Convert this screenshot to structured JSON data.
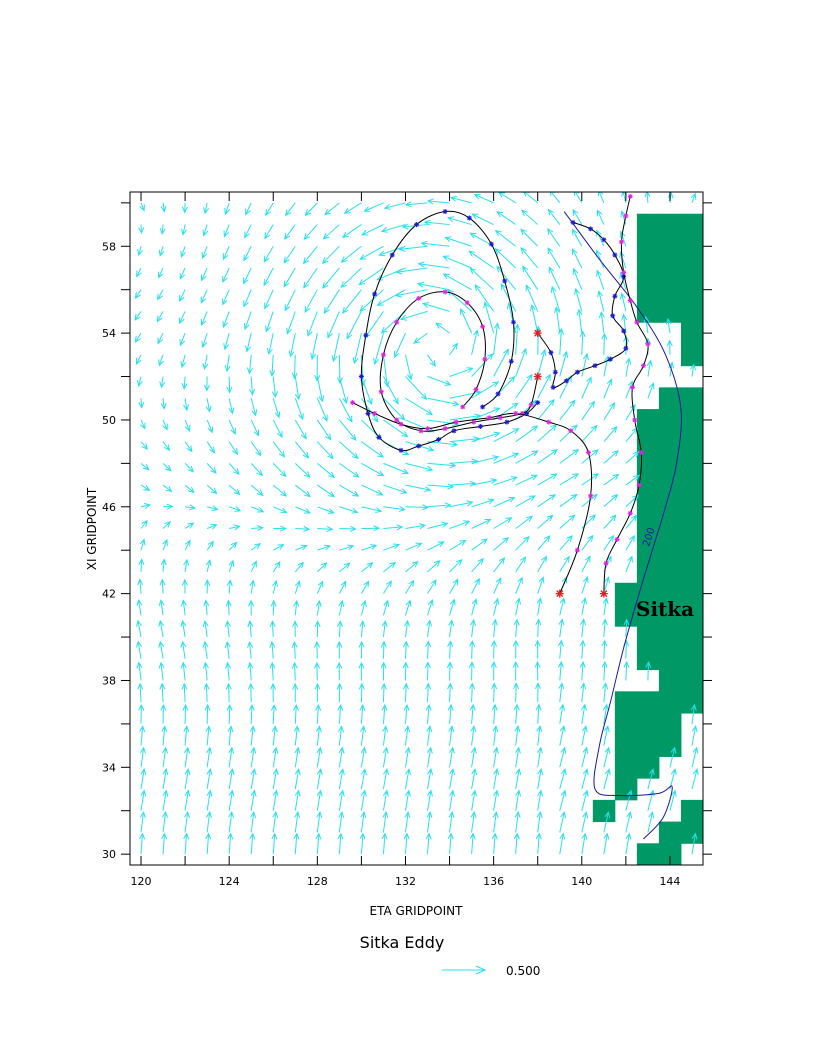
{
  "chart_data": {
    "type": "scatter",
    "subtype": "vector-field-with-trajectories",
    "title": "Sitka Eddy",
    "xlabel": "ETA GRIDPOINT",
    "ylabel": "XI GRIDPOINT",
    "xlim": [
      119.5,
      145.5
    ],
    "ylim": [
      29.5,
      60.5
    ],
    "x_ticks": [
      120,
      124,
      128,
      132,
      136,
      140,
      144
    ],
    "y_ticks": [
      30,
      34,
      38,
      42,
      46,
      50,
      54,
      58
    ],
    "x_tick_labels": [
      "120",
      "124",
      "128",
      "132",
      "136",
      "140",
      "144"
    ],
    "y_tick_labels": [
      "30",
      "34",
      "38",
      "42",
      "46",
      "50",
      "54",
      "58"
    ],
    "grid": false,
    "colors": {
      "vectors": "#26e0f0",
      "land": "#009966",
      "contour": "#1a1aa0",
      "track_blue": "#1a1ad0",
      "track_magenta": "#e020e0",
      "release_marker": "#e02020",
      "line": "#000000"
    },
    "eddy": {
      "center": [
        133.5,
        53.5
      ],
      "direction": "anticyclonic"
    },
    "reference_vector": {
      "label": "0.500",
      "magnitude": 0.5
    },
    "place_label": {
      "text": "Sitka",
      "x": 142.5,
      "y": 41.3
    },
    "contour": {
      "label": "200",
      "label_at": [
        142.2,
        45.2
      ],
      "points": [
        [
          139.2,
          59.6
        ],
        [
          140.8,
          57.4
        ],
        [
          142.5,
          55.2
        ],
        [
          143.8,
          53.0
        ],
        [
          144.5,
          50.5
        ],
        [
          144.3,
          48.0
        ],
        [
          143.8,
          46.0
        ],
        [
          143.2,
          44.0
        ],
        [
          142.6,
          42.0
        ],
        [
          141.9,
          39.5
        ],
        [
          141.3,
          37.0
        ],
        [
          140.8,
          35.0
        ],
        [
          140.6,
          33.0
        ],
        [
          141.7,
          32.7
        ],
        [
          143.5,
          32.8
        ],
        [
          144.1,
          33.1
        ],
        [
          143.7,
          31.7
        ],
        [
          142.8,
          30.7
        ]
      ]
    },
    "land_cells": [
      [
        143,
        59
      ],
      [
        144,
        59
      ],
      [
        145,
        59
      ],
      [
        143,
        58
      ],
      [
        144,
        58
      ],
      [
        145,
        58
      ],
      [
        143,
        57
      ],
      [
        144,
        57
      ],
      [
        145,
        57
      ],
      [
        143,
        56
      ],
      [
        144,
        56
      ],
      [
        145,
        56
      ],
      [
        143,
        55
      ],
      [
        144,
        55
      ],
      [
        145,
        55
      ],
      [
        145,
        54
      ],
      [
        145,
        53
      ],
      [
        144,
        51
      ],
      [
        145,
        51
      ],
      [
        143,
        50
      ],
      [
        144,
        50
      ],
      [
        145,
        50
      ],
      [
        143,
        49
      ],
      [
        144,
        49
      ],
      [
        145,
        49
      ],
      [
        143,
        48
      ],
      [
        144,
        48
      ],
      [
        145,
        48
      ],
      [
        143,
        47
      ],
      [
        144,
        47
      ],
      [
        145,
        47
      ],
      [
        143,
        46
      ],
      [
        144,
        46
      ],
      [
        145,
        46
      ],
      [
        143,
        45
      ],
      [
        144,
        45
      ],
      [
        145,
        45
      ],
      [
        143,
        44
      ],
      [
        144,
        44
      ],
      [
        145,
        44
      ],
      [
        143,
        43
      ],
      [
        144,
        43
      ],
      [
        145,
        43
      ],
      [
        143,
        42
      ],
      [
        144,
        42
      ],
      [
        145,
        42
      ],
      [
        142,
        42
      ],
      [
        142,
        41
      ],
      [
        143,
        41
      ],
      [
        144,
        41
      ],
      [
        145,
        41
      ],
      [
        143,
        40
      ],
      [
        144,
        40
      ],
      [
        145,
        40
      ],
      [
        143,
        39
      ],
      [
        144,
        39
      ],
      [
        145,
        39
      ],
      [
        144,
        38
      ],
      [
        145,
        38
      ],
      [
        142,
        37
      ],
      [
        143,
        37
      ],
      [
        144,
        37
      ],
      [
        145,
        37
      ],
      [
        142,
        36
      ],
      [
        143,
        36
      ],
      [
        144,
        36
      ],
      [
        142,
        35
      ],
      [
        143,
        35
      ],
      [
        144,
        35
      ],
      [
        142,
        34
      ],
      [
        143,
        34
      ],
      [
        142,
        33
      ],
      [
        141,
        32
      ],
      [
        145,
        32
      ],
      [
        144,
        31
      ],
      [
        145,
        31
      ],
      [
        143,
        30
      ],
      [
        144,
        30
      ]
    ],
    "series": [
      {
        "color": "#1a1ad0",
        "marker": "star-blue",
        "points": [
          [
            138.0,
            50.8
          ],
          [
            137.5,
            50.3
          ],
          [
            136.6,
            49.9
          ],
          [
            135.4,
            49.7
          ],
          [
            134.2,
            49.5
          ],
          [
            133.5,
            49.1
          ],
          [
            132.6,
            48.8
          ],
          [
            131.8,
            48.6
          ],
          [
            130.8,
            49.2
          ],
          [
            130.3,
            50.3
          ],
          [
            130.0,
            52.0
          ],
          [
            130.2,
            53.9
          ],
          [
            130.6,
            55.8
          ],
          [
            131.4,
            57.6
          ],
          [
            132.5,
            59.0
          ],
          [
            133.8,
            59.6
          ],
          [
            134.9,
            59.3
          ],
          [
            135.9,
            58.1
          ],
          [
            136.5,
            56.4
          ],
          [
            136.9,
            54.5
          ],
          [
            136.8,
            52.7
          ],
          [
            136.2,
            51.2
          ],
          [
            135.5,
            50.6
          ]
        ]
      },
      {
        "color": "#1a1ad0",
        "marker": "star-blue",
        "points": [
          [
            138.0,
            54.0
          ],
          [
            138.6,
            53.1
          ],
          [
            138.8,
            52.2
          ],
          [
            138.7,
            51.5
          ],
          [
            139.3,
            51.8
          ],
          [
            139.8,
            52.2
          ],
          [
            140.6,
            52.5
          ],
          [
            141.3,
            52.8
          ],
          [
            142.0,
            53.3
          ],
          [
            141.9,
            54.1
          ],
          [
            141.4,
            54.8
          ],
          [
            141.5,
            55.7
          ],
          [
            141.9,
            56.6
          ],
          [
            141.5,
            57.6
          ],
          [
            141.0,
            58.3
          ],
          [
            140.4,
            58.8
          ],
          [
            139.6,
            59.1
          ]
        ]
      },
      {
        "color": "#e020e0",
        "marker": "star-magenta",
        "points": [
          [
            138.0,
            52.0
          ],
          [
            137.7,
            50.7
          ],
          [
            137.3,
            50.3
          ],
          [
            136.3,
            50.1
          ],
          [
            135.1,
            49.9
          ],
          [
            133.8,
            49.6
          ],
          [
            132.7,
            49.5
          ],
          [
            131.6,
            50.0
          ],
          [
            130.9,
            51.3
          ],
          [
            131.0,
            53.0
          ],
          [
            131.6,
            54.5
          ],
          [
            132.6,
            55.6
          ],
          [
            133.8,
            55.9
          ],
          [
            134.8,
            55.4
          ],
          [
            135.5,
            54.3
          ],
          [
            135.6,
            52.8
          ],
          [
            135.2,
            51.4
          ],
          [
            134.6,
            50.6
          ]
        ]
      },
      {
        "color": "#e020e0",
        "marker": "star-magenta",
        "points": [
          [
            139.0,
            42.0
          ],
          [
            139.8,
            44.0
          ],
          [
            140.4,
            46.5
          ],
          [
            140.3,
            48.5
          ],
          [
            139.5,
            49.5
          ],
          [
            138.5,
            49.9
          ],
          [
            137.0,
            50.3
          ],
          [
            135.8,
            50.1
          ],
          [
            134.3,
            49.9
          ],
          [
            133.0,
            49.6
          ],
          [
            131.8,
            49.8
          ],
          [
            130.6,
            50.3
          ],
          [
            129.6,
            50.8
          ]
        ]
      },
      {
        "color": "#e020e0",
        "marker": "star-magenta",
        "points": [
          [
            141.0,
            42.0
          ],
          [
            141.1,
            43.4
          ],
          [
            141.6,
            44.5
          ],
          [
            142.2,
            45.7
          ],
          [
            142.6,
            47.0
          ],
          [
            142.7,
            48.5
          ],
          [
            142.4,
            50.0
          ],
          [
            142.3,
            51.5
          ],
          [
            142.8,
            52.5
          ],
          [
            143.0,
            53.5
          ],
          [
            142.5,
            54.5
          ],
          [
            142.2,
            55.5
          ],
          [
            141.9,
            56.8
          ],
          [
            141.8,
            58.2
          ],
          [
            142.0,
            59.4
          ],
          [
            142.2,
            60.3
          ]
        ]
      }
    ],
    "release_points": [
      [
        138,
        54
      ],
      [
        138,
        52
      ],
      [
        139,
        42
      ],
      [
        141,
        42
      ]
    ]
  }
}
